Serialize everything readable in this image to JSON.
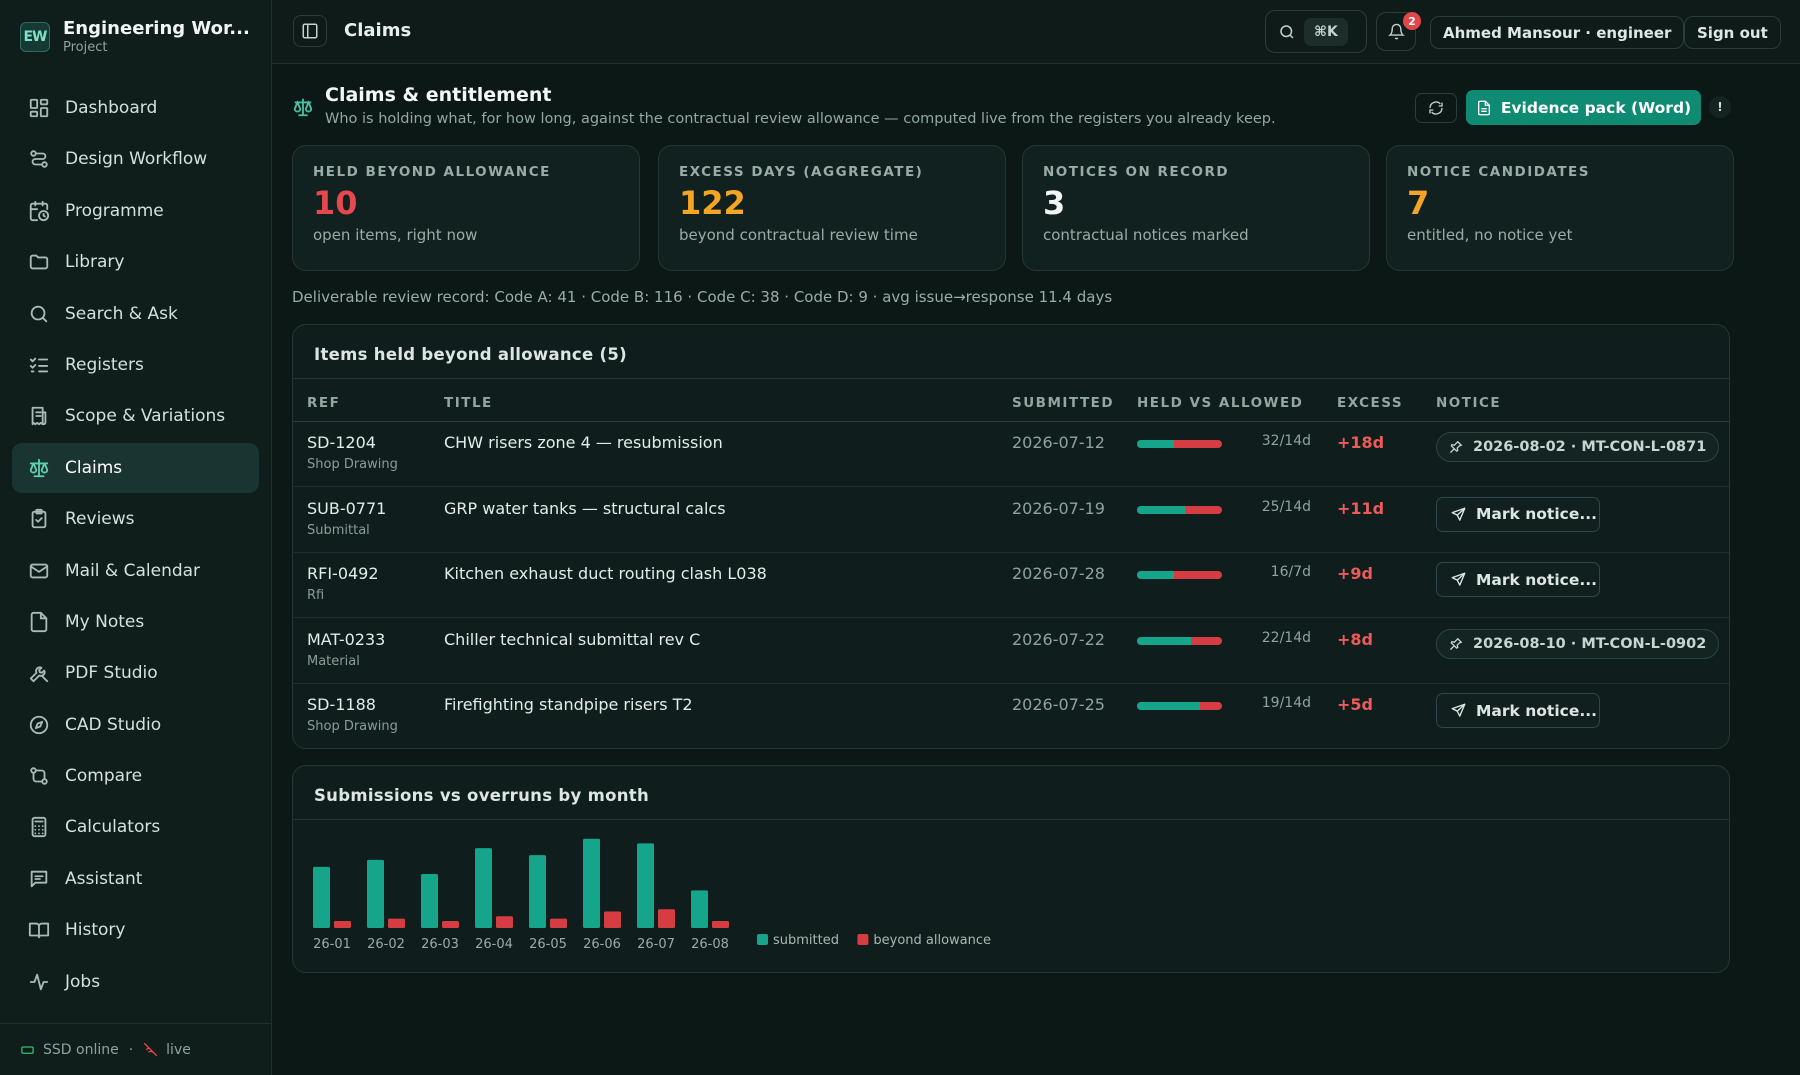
{
  "app": {
    "name": "Engineering Wor...",
    "subtitle": "Project",
    "logo": "EW"
  },
  "sidebar": {
    "items": [
      {
        "label": "Dashboard",
        "icon": "grid-icon"
      },
      {
        "label": "Design Workflow",
        "icon": "workflow-icon"
      },
      {
        "label": "Programme",
        "icon": "calendar-clock-icon"
      },
      {
        "label": "Library",
        "icon": "folder-icon"
      },
      {
        "label": "Search & Ask",
        "icon": "search-icon"
      },
      {
        "label": "Registers",
        "icon": "list-checks-icon"
      },
      {
        "label": "Scope & Variations",
        "icon": "receipt-icon"
      },
      {
        "label": "Claims",
        "icon": "scale-icon",
        "active": true
      },
      {
        "label": "Reviews",
        "icon": "clipboard-icon"
      },
      {
        "label": "Mail & Calendar",
        "icon": "mail-icon"
      },
      {
        "label": "My Notes",
        "icon": "file-icon"
      },
      {
        "label": "PDF Studio",
        "icon": "tools-icon"
      },
      {
        "label": "CAD Studio",
        "icon": "compass-icon"
      },
      {
        "label": "Compare",
        "icon": "git-compare-icon"
      },
      {
        "label": "Calculators",
        "icon": "calculator-icon"
      },
      {
        "label": "Assistant",
        "icon": "message-icon"
      },
      {
        "label": "History",
        "icon": "book-icon"
      },
      {
        "label": "Jobs",
        "icon": "activity-icon"
      }
    ],
    "footer": {
      "storage": "SSD online",
      "separator": "·",
      "live": "live"
    }
  },
  "topbar": {
    "title": "Claims",
    "search_shortcut": "⌘K",
    "notification_count": "2",
    "user": "Ahmed Mansour · engineer",
    "signout": "Sign out"
  },
  "page": {
    "title": "Claims & entitlement",
    "subtitle": "Who is holding what, for how long, against the contractual review allowance — computed live from the registers you already keep.",
    "evidence_button": "Evidence pack (Word)",
    "info_badge": "!"
  },
  "stats": [
    {
      "label": "HELD BEYOND ALLOWANCE",
      "value": "10",
      "desc": "open items, right now",
      "color": "#e5484d"
    },
    {
      "label": "EXCESS DAYS (AGGREGATE)",
      "value": "122",
      "desc": "beyond contractual review time",
      "color": "#f5a524"
    },
    {
      "label": "NOTICES ON RECORD",
      "value": "3",
      "desc": "contractual notices marked",
      "color": "#f1f5f4"
    },
    {
      "label": "NOTICE CANDIDATES",
      "value": "7",
      "desc": "entitled, no notice yet",
      "color": "#f5a524"
    }
  ],
  "review_record": "Deliverable review record: Code A: 41 · Code B: 116 · Code C: 38 · Code D: 9 · avg issue→response 11.4 days",
  "held_table": {
    "title": "Items held beyond allowance (5)",
    "columns": [
      "REF",
      "TITLE",
      "SUBMITTED",
      "HELD VS ALLOWED",
      "EXCESS",
      "NOTICE"
    ],
    "rows": [
      {
        "ref": "SD-1204",
        "kind": "Shop Drawing",
        "title": "CHW risers zone 4 — resubmission",
        "submitted": "2026-07-12",
        "held_days": 32,
        "allowed_days": 14,
        "held": "32/14d",
        "excess": "+18d",
        "notice": "2026-08-02 · MT-CON-L-0871",
        "noticed": true
      },
      {
        "ref": "SUB-0771",
        "kind": "Submittal",
        "title": "GRP water tanks — structural calcs",
        "submitted": "2026-07-19",
        "held_days": 25,
        "allowed_days": 14,
        "held": "25/14d",
        "excess": "+11d",
        "notice": "Mark notice...",
        "noticed": false
      },
      {
        "ref": "RFI-0492",
        "kind": "Rfi",
        "title": "Kitchen exhaust duct routing clash L038",
        "submitted": "2026-07-28",
        "held_days": 16,
        "allowed_days": 7,
        "held": "16/7d",
        "excess": "+9d",
        "notice": "Mark notice...",
        "noticed": false
      },
      {
        "ref": "MAT-0233",
        "kind": "Material",
        "title": "Chiller technical submittal rev C",
        "submitted": "2026-07-22",
        "held_days": 22,
        "allowed_days": 14,
        "held": "22/14d",
        "excess": "+8d",
        "notice": "2026-08-10 · MT-CON-L-0902",
        "noticed": true
      },
      {
        "ref": "SD-1188",
        "kind": "Shop Drawing",
        "title": "Firefighting standpipe risers T2",
        "submitted": "2026-07-25",
        "held_days": 19,
        "allowed_days": 14,
        "held": "19/14d",
        "excess": "+5d",
        "notice": "Mark notice...",
        "noticed": false
      }
    ]
  },
  "chart_panel_title": "Submissions vs overruns by month",
  "chart_data": {
    "type": "bar",
    "categories": [
      "26-01",
      "26-02",
      "26-03",
      "26-04",
      "26-05",
      "26-06",
      "26-07",
      "26-08"
    ],
    "series": [
      {
        "name": "submitted",
        "values": [
          26,
          29,
          23,
          34,
          31,
          38,
          36,
          16
        ],
        "color": "#14a58a"
      },
      {
        "name": "beyond allowance",
        "values": [
          3,
          4,
          3,
          5,
          4,
          7,
          8,
          3
        ],
        "color": "#d63d43"
      }
    ],
    "ylim": [
      0,
      40
    ],
    "legend": "right",
    "grid": false
  }
}
